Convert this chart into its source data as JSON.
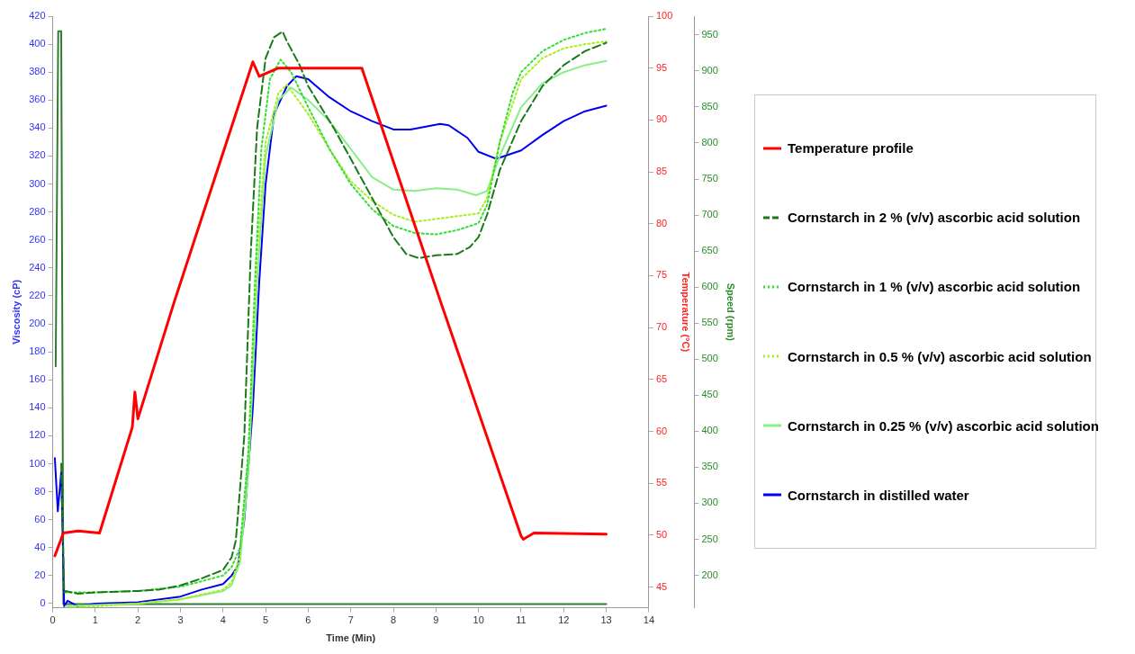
{
  "chart_data": {
    "type": "line",
    "xlabel": "Time (Min)",
    "ylabel": "Viscosity (cP)",
    "y2label": "Temperature (°C)",
    "y3label": "Speed (rpm)",
    "xlim": [
      0,
      14
    ],
    "xticks": [
      0,
      1,
      2,
      3,
      4,
      5,
      6,
      7,
      8,
      9,
      10,
      11,
      12,
      13,
      14
    ],
    "ylim": [
      -3,
      420
    ],
    "yticks": [
      0,
      20,
      40,
      60,
      80,
      100,
      120,
      140,
      160,
      180,
      200,
      220,
      240,
      260,
      280,
      300,
      320,
      340,
      360,
      380,
      400,
      420
    ],
    "y2lim": [
      43,
      100
    ],
    "y2ticks": [
      45,
      50,
      55,
      60,
      65,
      70,
      75,
      80,
      85,
      90,
      95,
      100
    ],
    "y3lim": [
      155,
      976
    ],
    "y3ticks": [
      200,
      250,
      300,
      350,
      400,
      450,
      500,
      550,
      600,
      650,
      700,
      750,
      800,
      850,
      900,
      950
    ],
    "grid": false,
    "legend": "right",
    "marker": "none",
    "series": [
      {
        "name": "Temperature profile",
        "color": "#ff0000",
        "axis": "y2",
        "line_style": "solid",
        "x": [
          0.05,
          0.25,
          0.6,
          1.1,
          1.87,
          1.93,
          2.0,
          2.84,
          4.7,
          4.85,
          5.3,
          7.26,
          9.1,
          11.0,
          11.05,
          11.3,
          13
        ],
        "values": [
          48,
          50.2,
          50.4,
          50.2,
          60.4,
          63.8,
          61.2,
          72.3,
          95.6,
          94.2,
          95,
          95,
          72.6,
          49.9,
          49.6,
          50.2,
          50.1
        ]
      },
      {
        "name": "Cornstarch in 2 % (v/v) ascorbic acid solution",
        "color": "#1a7a1a",
        "line_style": "dashed",
        "x": [
          0.2,
          0.27,
          0.3,
          0.6,
          1,
          2,
          2.5,
          3,
          3.5,
          4,
          4.2,
          4.3,
          4.5,
          4.65,
          4.8,
          5.0,
          5.2,
          5.4,
          5.5,
          5.8,
          6.0,
          6.3,
          6.6,
          7,
          7.5,
          8,
          8.3,
          8.6,
          9.0,
          9.5,
          9.8,
          10.0,
          10.2,
          10.5,
          11,
          11.5,
          12,
          12.5,
          13
        ],
        "values": [
          100,
          8,
          9,
          7,
          8,
          9,
          10,
          13,
          18,
          24,
          33,
          45,
          120,
          250,
          340,
          390,
          405,
          409,
          402,
          385,
          370,
          355,
          340,
          318,
          290,
          262,
          250,
          247,
          249,
          250,
          255,
          262,
          278,
          310,
          345,
          370,
          385,
          395,
          401
        ]
      },
      {
        "name": "Cornstarch in 1 % (v/v) ascorbic acid solution",
        "color": "#33dd33",
        "line_style": "dotted",
        "x": [
          0.3,
          1,
          2,
          3,
          3.5,
          4,
          4.2,
          4.4,
          4.6,
          4.75,
          4.9,
          5.1,
          5.35,
          5.6,
          6,
          6.5,
          7,
          7.5,
          8,
          8.5,
          9,
          9.5,
          10,
          10.2,
          10.5,
          10.8,
          11,
          11.5,
          12,
          12.5,
          13
        ],
        "values": [
          8,
          8,
          9,
          12,
          16,
          20,
          26,
          40,
          110,
          230,
          325,
          375,
          389,
          380,
          355,
          325,
          300,
          282,
          270,
          265,
          264,
          267,
          272,
          285,
          330,
          365,
          380,
          395,
          403,
          408,
          411
        ]
      },
      {
        "name": "Cornstarch in 0.5 % (v/v) ascorbic acid solution",
        "color": "#aaee22",
        "line_style": "dotted",
        "x": [
          0.3,
          1,
          2,
          3,
          4,
          4.2,
          4.4,
          4.6,
          4.8,
          5.0,
          5.3,
          5.5,
          6,
          6.5,
          7,
          7.5,
          8,
          8.5,
          9,
          9.5,
          10,
          10.2,
          10.5,
          11,
          11.5,
          12,
          12.5,
          13
        ],
        "values": [
          -3,
          -2,
          0,
          3,
          10,
          15,
          35,
          110,
          250,
          330,
          365,
          371,
          350,
          325,
          302,
          288,
          278,
          273,
          275,
          277,
          279,
          290,
          330,
          375,
          390,
          397,
          400,
          402
        ]
      },
      {
        "name": "Cornstarch in 0.25 % (v/v) ascorbic acid solution",
        "color": "#88ee88",
        "line_style": "solid",
        "x": [
          0.3,
          1,
          2,
          3,
          4,
          4.2,
          4.4,
          4.6,
          4.8,
          5.0,
          5.3,
          5.6,
          6,
          6.5,
          7,
          7.5,
          8,
          8.5,
          9,
          9.5,
          9.94,
          10.2,
          10.5,
          11,
          11.5,
          12,
          12.5,
          13
        ],
        "values": [
          -2,
          -1,
          0,
          3,
          9,
          13,
          30,
          95,
          230,
          320,
          360,
          369,
          360,
          345,
          325,
          305,
          296,
          295,
          297,
          296,
          292,
          295,
          320,
          355,
          372,
          380,
          385,
          388
        ]
      },
      {
        "name": "Cornstarch in distilled water",
        "color": "#0000ee",
        "line_style": "solid",
        "x": [
          0.05,
          0.12,
          0.2,
          0.27,
          0.35,
          0.6,
          1,
          2,
          3,
          3.5,
          4,
          4.2,
          4.35,
          4.5,
          4.7,
          4.85,
          5,
          5.2,
          5.5,
          5.72,
          6.0,
          6.5,
          7,
          7.5,
          8.0,
          8.4,
          9.1,
          9.3,
          9.74,
          10.0,
          10.42,
          11,
          11.5,
          12,
          12.5,
          13
        ],
        "values": [
          104,
          66,
          94,
          -2,
          2,
          -2,
          0,
          1,
          5,
          10,
          14,
          20,
          27,
          60,
          140,
          230,
          300,
          350,
          370,
          377,
          375,
          362,
          352,
          345,
          339,
          339,
          343,
          342,
          333,
          323,
          318,
          324,
          335,
          345,
          352,
          356
        ]
      },
      {
        "color": "#2e7d2e",
        "axis": "y3",
        "line_style": "solid",
        "x": [
          0.07,
          0.13,
          0.2,
          0.25,
          13
        ],
        "values": [
          490,
          955,
          955,
          160,
          160
        ]
      }
    ]
  }
}
